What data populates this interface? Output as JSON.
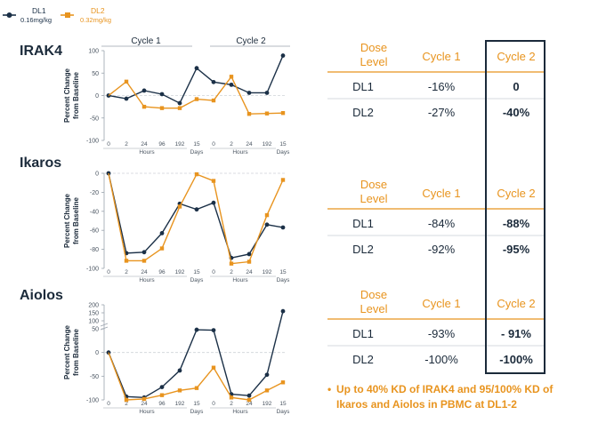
{
  "colors": {
    "dl1": "#1b3047",
    "dl2": "#e8941f",
    "axis": "#9aa3ad",
    "grid": "#cfd4d9"
  },
  "legend": [
    {
      "name": "DL1",
      "dose": "0.16mg/kg"
    },
    {
      "name": "DL2",
      "dose": "0.32mg/kg"
    }
  ],
  "axis_text": {
    "ylabel_1": "Percent Change",
    "ylabel_2": "from Baseline",
    "hours": "Hours",
    "days": "Days",
    "cycle1": "Cycle 1",
    "cycle2": "Cycle 2"
  },
  "tables": [
    {
      "header": [
        "Dose Level",
        "Cycle 1",
        "Cycle 2"
      ],
      "rows": [
        [
          "DL1",
          "-16%",
          "0"
        ],
        [
          "DL2",
          "-27%",
          "-40%"
        ]
      ]
    },
    {
      "header": [
        "Dose Level",
        "Cycle 1",
        "Cycle 2"
      ],
      "rows": [
        [
          "DL1",
          "-84%",
          "-88%"
        ],
        [
          "DL2",
          "-92%",
          "-95%"
        ]
      ]
    },
    {
      "header": [
        "Dose Level",
        "Cycle 1",
        "Cycle 2"
      ],
      "rows": [
        [
          "DL1",
          "-93%",
          "- 91%"
        ],
        [
          "DL2",
          "-100%",
          "-100%"
        ]
      ]
    }
  ],
  "bullet": "Up to 40% KD of IRAK4 and 95/100% KD of Ikaros and Aiolos in PBMC at DL1-2",
  "chart_data": [
    {
      "type": "line",
      "title": "IRAK4",
      "ylabel": "Percent Change from Baseline",
      "x": [
        "0",
        "2",
        "24",
        "96",
        "192",
        "15",
        "0",
        "2",
        "24",
        "192",
        "15"
      ],
      "ylim": [
        -100,
        100
      ],
      "yticks": [
        -100,
        -50,
        0,
        50,
        100
      ],
      "series": [
        {
          "name": "DL1",
          "values": [
            0,
            -7,
            11,
            3,
            -17,
            61,
            30,
            24,
            6,
            6,
            89
          ]
        },
        {
          "name": "DL2",
          "values": [
            null,
            31,
            -25,
            -28,
            -28,
            -8,
            -11,
            42,
            -41,
            -40,
            -39
          ]
        }
      ]
    },
    {
      "type": "line",
      "title": "Ikaros",
      "ylabel": "Percent Change from Baseline",
      "x": [
        "0",
        "2",
        "24",
        "96",
        "192",
        "15",
        "0",
        "2",
        "24",
        "192",
        "15"
      ],
      "ylim": [
        -100,
        0
      ],
      "yticks": [
        -100,
        -80,
        -60,
        -40,
        -20,
        0
      ],
      "series": [
        {
          "name": "DL1",
          "values": [
            0,
            -84,
            -83,
            -63,
            -32,
            -38,
            -31,
            -89,
            -85,
            -54,
            -57
          ]
        },
        {
          "name": "DL2",
          "values": [
            null,
            -92,
            -92,
            -79,
            -35,
            -1,
            -8,
            -95,
            -93,
            -44,
            -7
          ]
        }
      ]
    },
    {
      "type": "line",
      "title": "Aiolos",
      "ylabel": "Percent Change from Baseline",
      "x": [
        "0",
        "2",
        "24",
        "96",
        "192",
        "15",
        "0",
        "2",
        "24",
        "192",
        "15"
      ],
      "ylim": [
        -100,
        200
      ],
      "yticks": [
        -100,
        -50,
        0,
        50,
        100,
        150,
        200
      ],
      "axis_break": true,
      "series": [
        {
          "name": "DL1",
          "values": [
            0,
            -93,
            -95,
            -73,
            -38,
            48,
            47,
            -88,
            -91,
            -47,
            160
          ]
        },
        {
          "name": "DL2",
          "values": [
            null,
            -100,
            -98,
            -90,
            -80,
            -75,
            -32,
            -95,
            -100,
            -80,
            -63
          ]
        }
      ]
    }
  ]
}
